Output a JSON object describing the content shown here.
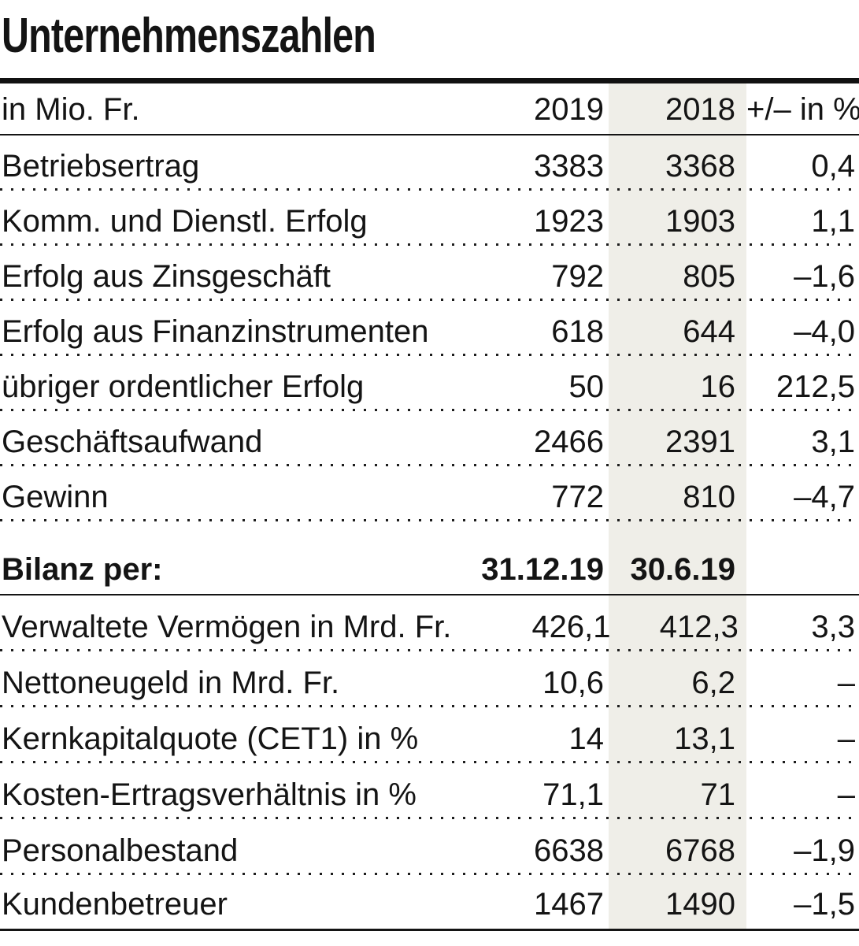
{
  "title": "Unternehmenszahlen",
  "colors": {
    "band": "#efeee8",
    "text": "#141414"
  },
  "table": {
    "header": {
      "unit_label": "in Mio. Fr.",
      "col_2019": "2019",
      "col_2018": "2018",
      "col_change": "+/– in %"
    },
    "rows": [
      {
        "label": "Betriebsertrag",
        "v2019": "3383",
        "v2018": "3368",
        "change": "0,4"
      },
      {
        "label": "Komm. und Dienstl. Erfolg",
        "v2019": "1923",
        "v2018": "1903",
        "change": "1,1"
      },
      {
        "label": "Erfolg aus Zinsgeschäft",
        "v2019": "792",
        "v2018": "805",
        "change": "–1,6"
      },
      {
        "label": "Erfolg aus Finanzinstrumenten",
        "v2019": "618",
        "v2018": "644",
        "change": "–4,0"
      },
      {
        "label": "übriger ordentlicher Erfolg",
        "v2019": "50",
        "v2018": "16",
        "change": "212,5"
      },
      {
        "label": "Geschäftsaufwand",
        "v2019": "2466",
        "v2018": "2391",
        "change": "3,1"
      },
      {
        "label": "Gewinn",
        "v2019": "772",
        "v2018": "810",
        "change": "–4,7"
      }
    ],
    "section": {
      "label": "Bilanz per:",
      "date_2019": "31.12.19",
      "date_2018": "30.6.19",
      "change": ""
    },
    "rows2": [
      {
        "label": "Verwaltete Vermögen in Mrd. Fr.",
        "v2019": "426,1",
        "v2018": "412,3",
        "change": "3,3"
      },
      {
        "label": "Nettoneugeld in Mrd. Fr.",
        "v2019": "10,6",
        "v2018": "6,2",
        "change": "–"
      },
      {
        "label": "Kernkapitalquote (CET1) in %",
        "v2019": "14",
        "v2018": "13,1",
        "change": "–"
      },
      {
        "label": "Kosten-Ertragsverhältnis in %",
        "v2019": "71,1",
        "v2018": "71",
        "change": "–"
      },
      {
        "label": "Personalbestand",
        "v2019": "6638",
        "v2018": "6768",
        "change": "–1,9"
      },
      {
        "label": "Kundenbetreuer",
        "v2019": "1467",
        "v2018": "1490",
        "change": "–1,5"
      }
    ]
  }
}
